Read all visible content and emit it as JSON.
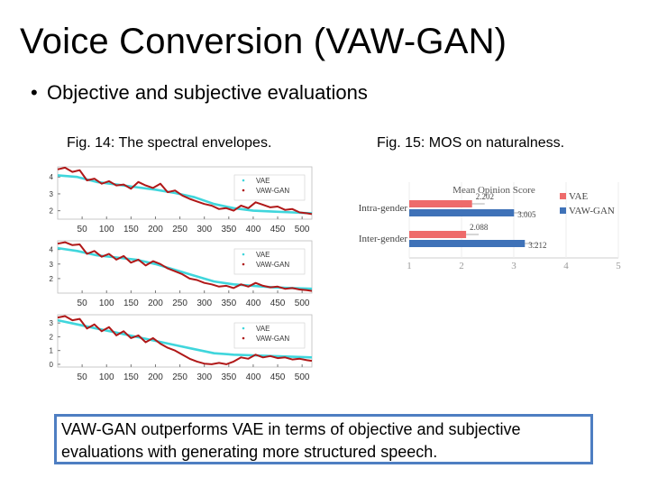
{
  "slide": {
    "title": "Voice Conversion (VAW-GAN)",
    "bullet": "Objective and subjective evaluations",
    "fig14_caption": "Fig. 14: The spectral envelopes.",
    "fig15_caption": "Fig. 15: MOS on naturalness.",
    "conclusion": "VAW-GAN outperforms VAE in terms of objective and subjective evaluations with generating more structured speech."
  },
  "chart_data": [
    {
      "type": "line",
      "panel": 1,
      "x_ticks": [
        50,
        100,
        150,
        200,
        250,
        300,
        350,
        400,
        450,
        500
      ],
      "y_ticks": [
        2,
        3,
        4
      ],
      "xlim": [
        0,
        520
      ],
      "ylim": [
        1.5,
        4.6
      ],
      "legend": "right",
      "series": [
        {
          "name": "VAE",
          "color": "#40d6dc",
          "x": [
            0,
            40,
            80,
            120,
            160,
            200,
            240,
            280,
            320,
            360,
            400,
            440,
            480,
            520
          ],
          "y": [
            4.1,
            4.0,
            3.7,
            3.55,
            3.4,
            3.25,
            3.05,
            2.8,
            2.4,
            2.15,
            2.0,
            1.95,
            1.9,
            1.85
          ]
        },
        {
          "name": "VAW-GAN",
          "color": "#b01818",
          "x": [
            0,
            15,
            30,
            45,
            60,
            75,
            90,
            105,
            120,
            135,
            150,
            165,
            180,
            195,
            210,
            225,
            240,
            255,
            270,
            285,
            300,
            315,
            330,
            345,
            360,
            375,
            390,
            405,
            420,
            435,
            450,
            465,
            480,
            495,
            510,
            520
          ],
          "y": [
            4.45,
            4.55,
            4.3,
            4.4,
            3.8,
            3.9,
            3.6,
            3.75,
            3.5,
            3.55,
            3.3,
            3.7,
            3.5,
            3.35,
            3.6,
            3.1,
            3.2,
            2.9,
            2.7,
            2.55,
            2.4,
            2.3,
            2.1,
            2.15,
            2.0,
            2.3,
            2.15,
            2.5,
            2.35,
            2.2,
            2.25,
            2.05,
            2.1,
            1.9,
            1.85,
            1.8
          ]
        }
      ]
    },
    {
      "type": "line",
      "panel": 2,
      "x_ticks": [
        50,
        100,
        150,
        200,
        250,
        300,
        350,
        400,
        450,
        500
      ],
      "y_ticks": [
        2,
        3,
        4
      ],
      "xlim": [
        0,
        520
      ],
      "ylim": [
        1.0,
        4.6
      ],
      "legend": "right",
      "series": [
        {
          "name": "VAE",
          "color": "#40d6dc",
          "x": [
            0,
            40,
            80,
            120,
            160,
            200,
            240,
            280,
            320,
            360,
            400,
            440,
            480,
            520
          ],
          "y": [
            4.1,
            3.9,
            3.6,
            3.45,
            3.3,
            3.0,
            2.6,
            2.2,
            1.8,
            1.6,
            1.5,
            1.4,
            1.35,
            1.3
          ]
        },
        {
          "name": "VAW-GAN",
          "color": "#b01818",
          "x": [
            0,
            15,
            30,
            45,
            60,
            75,
            90,
            105,
            120,
            135,
            150,
            165,
            180,
            195,
            210,
            225,
            240,
            255,
            270,
            285,
            300,
            315,
            330,
            345,
            360,
            375,
            390,
            405,
            420,
            435,
            450,
            465,
            480,
            495,
            510,
            520
          ],
          "y": [
            4.4,
            4.5,
            4.3,
            4.35,
            3.7,
            3.9,
            3.5,
            3.7,
            3.3,
            3.55,
            3.1,
            3.3,
            2.9,
            3.2,
            3.0,
            2.7,
            2.5,
            2.3,
            2.0,
            1.9,
            1.7,
            1.6,
            1.45,
            1.5,
            1.35,
            1.6,
            1.45,
            1.7,
            1.5,
            1.4,
            1.45,
            1.3,
            1.35,
            1.25,
            1.2,
            1.15
          ]
        }
      ]
    },
    {
      "type": "line",
      "panel": 3,
      "x_ticks": [
        50,
        100,
        150,
        200,
        250,
        300,
        350,
        400,
        450,
        500
      ],
      "y_ticks": [
        0,
        1,
        2,
        3
      ],
      "xlim": [
        0,
        520
      ],
      "ylim": [
        -0.2,
        3.6
      ],
      "legend": "right",
      "series": [
        {
          "name": "VAE",
          "color": "#40d6dc",
          "x": [
            0,
            40,
            80,
            120,
            160,
            200,
            240,
            280,
            320,
            360,
            400,
            440,
            480,
            520
          ],
          "y": [
            3.2,
            2.9,
            2.6,
            2.3,
            2.0,
            1.7,
            1.4,
            1.1,
            0.8,
            0.7,
            0.65,
            0.6,
            0.55,
            0.5
          ]
        },
        {
          "name": "VAW-GAN",
          "color": "#b01818",
          "x": [
            0,
            15,
            30,
            45,
            60,
            75,
            90,
            105,
            120,
            135,
            150,
            165,
            180,
            195,
            210,
            225,
            240,
            255,
            270,
            285,
            300,
            315,
            330,
            345,
            360,
            375,
            390,
            405,
            420,
            435,
            450,
            465,
            480,
            495,
            510,
            520
          ],
          "y": [
            3.4,
            3.5,
            3.2,
            3.3,
            2.6,
            2.9,
            2.4,
            2.7,
            2.1,
            2.4,
            1.9,
            2.1,
            1.6,
            1.9,
            1.5,
            1.2,
            1.0,
            0.7,
            0.4,
            0.2,
            0.05,
            0.0,
            0.1,
            0.0,
            0.2,
            0.5,
            0.4,
            0.7,
            0.5,
            0.6,
            0.45,
            0.5,
            0.35,
            0.4,
            0.3,
            0.25
          ]
        }
      ]
    },
    {
      "type": "bar",
      "orientation": "horizontal",
      "title": "Mean Opinion Score",
      "categories": [
        "Intra-gender",
        "Inter-gender"
      ],
      "x_ticks": [
        1,
        2,
        3,
        4,
        5
      ],
      "xlim": [
        1,
        5
      ],
      "legend": "right",
      "series": [
        {
          "name": "VAE",
          "color": "#ee6b6b",
          "values": [
            2.202,
            2.088
          ],
          "labels": [
            "2.202",
            "2.088"
          ]
        },
        {
          "name": "VAW-GAN",
          "color": "#3f72b8",
          "values": [
            3.005,
            3.212
          ],
          "labels": [
            "3.005",
            "3.212"
          ]
        }
      ]
    }
  ]
}
